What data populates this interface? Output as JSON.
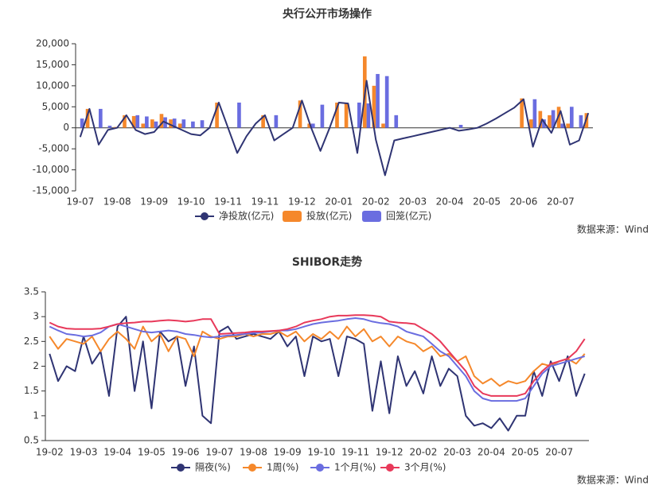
{
  "chart_data": [
    {
      "type": "bar",
      "title": "央行公开市场操作",
      "source": "数据来源：Wind",
      "categories": [
        "19-07",
        null,
        null,
        null,
        "19-08",
        null,
        null,
        null,
        "19-09",
        null,
        null,
        null,
        "19-10",
        null,
        null,
        null,
        "19-11",
        null,
        null,
        null,
        "19-11",
        null,
        null,
        null,
        "19-12",
        null,
        null,
        null,
        "20-01",
        null,
        null,
        null,
        "20-02",
        null,
        null,
        null,
        "20-03",
        null,
        null,
        null,
        "20-04",
        null,
        null,
        null,
        "20-05",
        null,
        null,
        null,
        "20-06",
        null,
        null,
        null,
        "20-07",
        null,
        null,
        null
      ],
      "ylim": [
        -15000,
        20000
      ],
      "yticks": [
        {
          "value": -15000,
          "label": "-15,000"
        },
        {
          "value": -10000,
          "label": "-10,000"
        },
        {
          "value": -5000,
          "label": "-5,000"
        },
        0,
        {
          "value": 5000,
          "label": "5,000"
        },
        {
          "value": 10000,
          "label": "10,000"
        },
        {
          "value": 15000,
          "label": "15,000"
        },
        {
          "value": 20000,
          "label": "20,000"
        }
      ],
      "series": [
        {
          "name": "净投放(亿元)",
          "type": "line",
          "color": "#2f3473",
          "values": [
            -2200,
            4500,
            -4000,
            -500,
            0,
            3000,
            -500,
            -1500,
            -1000,
            1500,
            500,
            -500,
            -1500,
            -1800,
            0,
            6000,
            0,
            -6000,
            -2000,
            1000,
            3000,
            -3000,
            -1500,
            0,
            6500,
            0,
            -5500,
            0,
            6000,
            5800,
            -6000,
            11200,
            -2800,
            -11300,
            -3000,
            -2500,
            -2000,
            -1500,
            -1000,
            -500,
            0,
            -700,
            -400,
            0,
            1000,
            2200,
            3500,
            4800,
            6800,
            -4500,
            2000,
            -1200,
            4000,
            -4000,
            -3000,
            3500
          ]
        },
        {
          "name": "投放(亿元)",
          "type": "bar",
          "color": "#f5882b",
          "values": [
            null,
            4500,
            null,
            null,
            200,
            3000,
            2800,
            1000,
            2000,
            3300,
            2000,
            1000,
            null,
            null,
            null,
            6000,
            null,
            null,
            null,
            null,
            3000,
            null,
            null,
            null,
            6500,
            1000,
            null,
            null,
            6000,
            6000,
            null,
            17000,
            10000,
            1000,
            null,
            null,
            null,
            null,
            null,
            null,
            null,
            null,
            null,
            null,
            null,
            null,
            null,
            null,
            7000,
            2000,
            4000,
            3000,
            5000,
            1000,
            null,
            3500
          ]
        },
        {
          "name": "回笼(亿元)",
          "type": "bar",
          "color": "#6a6de0",
          "values": [
            2200,
            null,
            4500,
            500,
            null,
            null,
            3000,
            2700,
            1500,
            2500,
            2200,
            2000,
            1500,
            1800,
            null,
            null,
            null,
            6000,
            null,
            null,
            null,
            3000,
            null,
            null,
            null,
            1000,
            5500,
            null,
            null,
            null,
            6000,
            5800,
            12800,
            12300,
            3000,
            null,
            null,
            null,
            null,
            null,
            null,
            700,
            null,
            null,
            null,
            null,
            null,
            null,
            null,
            6800,
            2000,
            4200,
            1000,
            5000,
            3000,
            null
          ]
        }
      ]
    },
    {
      "type": "line",
      "title": "SHIBOR走势",
      "source": "数据来源：Wind",
      "categories": [
        "19-02",
        null,
        null,
        null,
        "19-03",
        null,
        null,
        null,
        "19-04",
        null,
        null,
        null,
        "19-05",
        null,
        null,
        null,
        "19-06",
        null,
        null,
        null,
        "19-07",
        null,
        null,
        null,
        "19-08",
        null,
        null,
        null,
        "19-09",
        null,
        null,
        null,
        "19-10",
        null,
        null,
        null,
        "19-11",
        null,
        null,
        null,
        "19-12",
        null,
        null,
        null,
        "20-02",
        null,
        null,
        null,
        "20-03",
        null,
        null,
        null,
        "20-04",
        null,
        null,
        null,
        "20-05",
        null,
        null,
        null,
        "20-07",
        null,
        null,
        null
      ],
      "ylim": [
        0.5,
        3.5
      ],
      "yticks": [
        0.5,
        1,
        1.5,
        2,
        2.5,
        3,
        3.5
      ],
      "series": [
        {
          "name": "隔夜(%)",
          "type": "line",
          "color": "#2f3473",
          "values": [
            2.25,
            1.7,
            2.0,
            1.9,
            2.6,
            2.05,
            2.3,
            1.4,
            2.8,
            3.0,
            1.5,
            2.5,
            1.15,
            2.7,
            2.5,
            2.6,
            1.6,
            2.4,
            1.0,
            0.85,
            2.7,
            2.8,
            2.55,
            2.6,
            2.65,
            2.6,
            2.55,
            2.7,
            2.4,
            2.6,
            1.8,
            2.6,
            2.5,
            2.55,
            1.8,
            2.6,
            2.55,
            2.45,
            1.1,
            2.1,
            1.05,
            2.2,
            1.6,
            1.9,
            1.45,
            2.2,
            1.6,
            1.95,
            1.8,
            1.0,
            0.8,
            0.85,
            0.75,
            0.95,
            0.7,
            1.0,
            1.0,
            1.9,
            1.4,
            2.1,
            1.7,
            2.2,
            1.4,
            1.85
          ]
        },
        {
          "name": "1周(%)",
          "type": "line",
          "color": "#f5882b",
          "values": [
            2.6,
            2.35,
            2.55,
            2.5,
            2.45,
            2.6,
            2.3,
            2.55,
            2.7,
            2.55,
            2.35,
            2.8,
            2.5,
            2.65,
            2.3,
            2.6,
            2.55,
            2.2,
            2.7,
            2.6,
            2.55,
            2.6,
            2.6,
            2.65,
            2.6,
            2.65,
            2.65,
            2.7,
            2.6,
            2.7,
            2.5,
            2.65,
            2.55,
            2.7,
            2.55,
            2.8,
            2.6,
            2.75,
            2.5,
            2.6,
            2.4,
            2.6,
            2.5,
            2.45,
            2.3,
            2.4,
            2.2,
            2.25,
            2.1,
            2.2,
            1.8,
            1.65,
            1.75,
            1.6,
            1.7,
            1.65,
            1.7,
            1.9,
            2.05,
            2.0,
            2.1,
            2.15,
            2.05,
            2.25
          ]
        },
        {
          "name": "1个月(%)",
          "type": "line",
          "color": "#6a6de0",
          "values": [
            2.8,
            2.72,
            2.65,
            2.63,
            2.6,
            2.62,
            2.68,
            2.8,
            2.85,
            2.8,
            2.75,
            2.7,
            2.68,
            2.7,
            2.72,
            2.7,
            2.65,
            2.63,
            2.6,
            2.58,
            2.6,
            2.62,
            2.63,
            2.65,
            2.67,
            2.68,
            2.7,
            2.72,
            2.72,
            2.75,
            2.8,
            2.85,
            2.88,
            2.9,
            2.92,
            2.95,
            2.97,
            2.95,
            2.9,
            2.87,
            2.85,
            2.8,
            2.7,
            2.65,
            2.6,
            2.45,
            2.3,
            2.2,
            2.0,
            1.8,
            1.5,
            1.35,
            1.3,
            1.3,
            1.3,
            1.3,
            1.35,
            1.6,
            1.85,
            2.0,
            2.05,
            2.1,
            2.15,
            2.2
          ]
        },
        {
          "name": "3个月(%)",
          "type": "line",
          "color": "#e8395a",
          "values": [
            2.88,
            2.8,
            2.76,
            2.75,
            2.75,
            2.75,
            2.76,
            2.8,
            2.85,
            2.87,
            2.88,
            2.9,
            2.9,
            2.92,
            2.93,
            2.92,
            2.9,
            2.92,
            2.95,
            2.95,
            2.65,
            2.66,
            2.67,
            2.68,
            2.7,
            2.7,
            2.71,
            2.72,
            2.75,
            2.8,
            2.88,
            2.92,
            2.95,
            3.0,
            3.02,
            3.02,
            3.03,
            3.03,
            3.02,
            3.0,
            2.9,
            2.88,
            2.87,
            2.85,
            2.75,
            2.65,
            2.5,
            2.3,
            2.1,
            1.9,
            1.6,
            1.45,
            1.4,
            1.4,
            1.4,
            1.4,
            1.45,
            1.7,
            1.9,
            2.05,
            2.1,
            2.15,
            2.3,
            2.55
          ]
        }
      ]
    }
  ]
}
